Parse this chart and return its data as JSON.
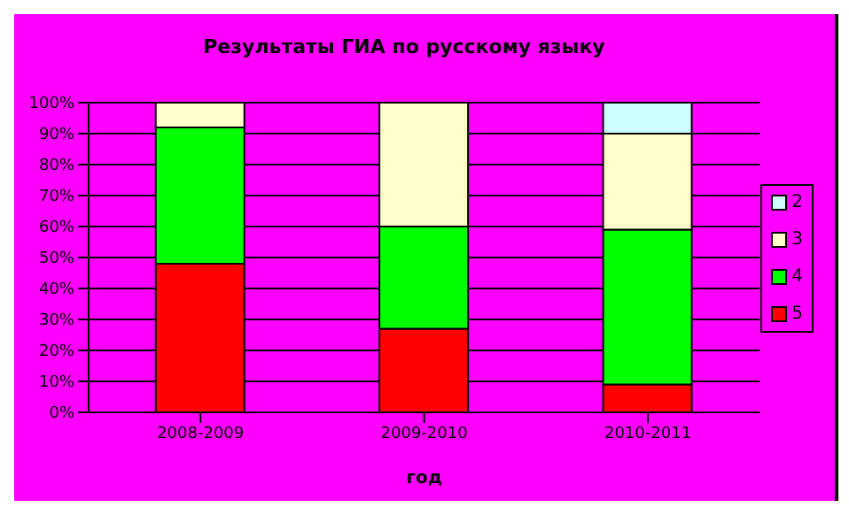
{
  "chart_data": {
    "type": "bar",
    "title": "Результаты ГИА по русскому языку",
    "xlabel": "год",
    "categories": [
      "2008-2009",
      "2009-2010",
      "2010-2011"
    ],
    "stacked": true,
    "legend": "right",
    "grid": "y",
    "ylim": [
      0,
      100
    ],
    "yticks": [
      {
        "value": 0,
        "label": "0%"
      },
      {
        "value": 10,
        "label": "10%"
      },
      {
        "value": 20,
        "label": "20%"
      },
      {
        "value": 30,
        "label": "30%"
      },
      {
        "value": 40,
        "label": "40%"
      },
      {
        "value": 50,
        "label": "50%"
      },
      {
        "value": 60,
        "label": "60%"
      },
      {
        "value": 70,
        "label": "70%"
      },
      {
        "value": 80,
        "label": "80%"
      },
      {
        "value": 90,
        "label": "90%"
      },
      {
        "value": 100,
        "label": "100%"
      }
    ],
    "series": [
      {
        "name": "5",
        "color": "#ff0000",
        "values": [
          48,
          27,
          9
        ]
      },
      {
        "name": "4",
        "color": "#00ff00",
        "values": [
          44,
          33,
          50
        ]
      },
      {
        "name": "3",
        "color": "#ffffcc",
        "values": [
          8,
          40,
          31
        ]
      },
      {
        "name": "2",
        "color": "#ccffff",
        "values": [
          0,
          0,
          10
        ]
      }
    ]
  }
}
